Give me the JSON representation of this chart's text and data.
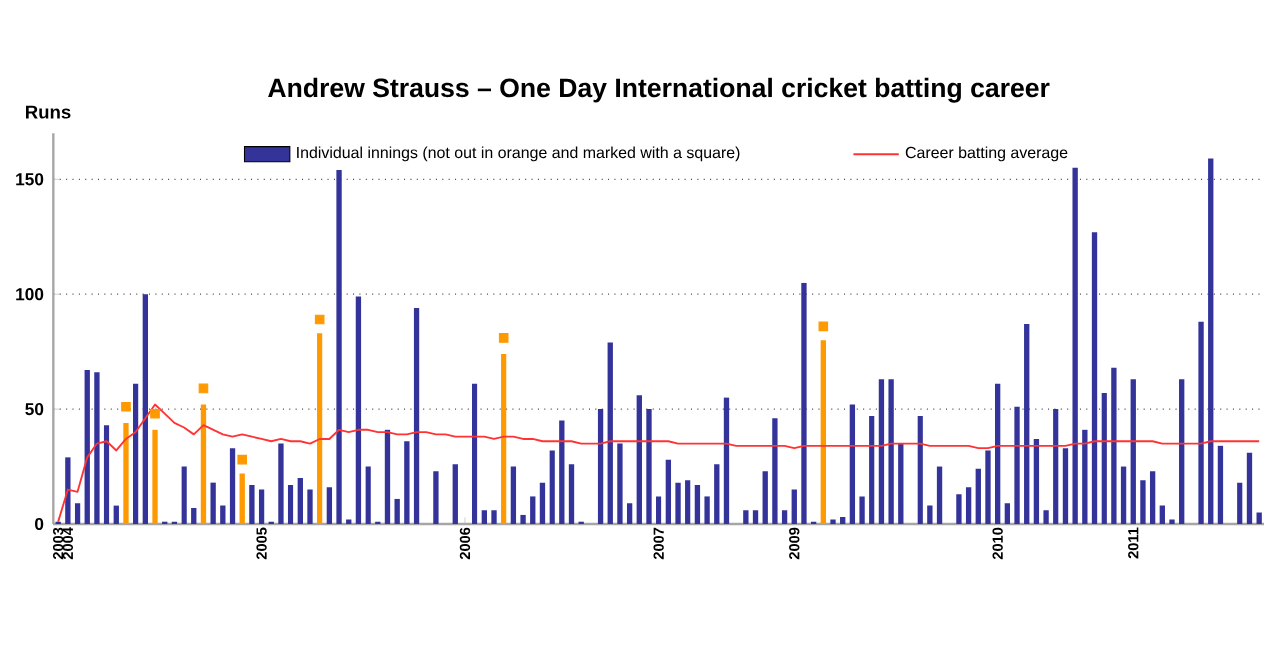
{
  "chart_data": {
    "type": "bar",
    "title": "Andrew Strauss – One Day International cricket batting career",
    "ylabel": "Runs",
    "categories": [
      "2003",
      "2004",
      null,
      null,
      null,
      null,
      null,
      null,
      null,
      null,
      null,
      null,
      null,
      null,
      null,
      null,
      null,
      null,
      null,
      null,
      null,
      "2005",
      null,
      null,
      null,
      null,
      null,
      null,
      null,
      null,
      null,
      null,
      null,
      null,
      null,
      null,
      null,
      null,
      null,
      null,
      null,
      null,
      "2006",
      null,
      null,
      null,
      null,
      null,
      null,
      null,
      null,
      null,
      null,
      null,
      null,
      null,
      null,
      null,
      null,
      null,
      null,
      null,
      "2007",
      null,
      null,
      null,
      null,
      null,
      null,
      null,
      null,
      null,
      null,
      null,
      null,
      null,
      "2009",
      null,
      null,
      null,
      null,
      null,
      null,
      null,
      null,
      null,
      null,
      null,
      null,
      null,
      null,
      null,
      null,
      null,
      null,
      null,
      null,
      "2010",
      null,
      null,
      null,
      null,
      null,
      null,
      null,
      null,
      null,
      null,
      null,
      null,
      null,
      "2011",
      null,
      null,
      null,
      null,
      null,
      null,
      null,
      null,
      null,
      null,
      null,
      null,
      null
    ],
    "ylim": [
      0,
      170
    ],
    "yticks": [
      0,
      50,
      100,
      150
    ],
    "grid": "y",
    "legend": "top",
    "series": [
      {
        "name": "Individual innings (not out in orange and marked with a square)",
        "color": "#333399",
        "values": [
          1,
          29,
          9,
          67,
          66,
          43,
          8,
          44,
          61,
          100,
          41,
          1,
          1,
          25,
          7,
          52,
          18,
          8,
          33,
          22,
          17,
          15,
          1,
          35,
          17,
          20,
          15,
          83,
          16,
          154,
          2,
          99,
          25,
          1,
          41,
          11,
          36,
          94,
          0,
          23,
          0,
          26,
          0,
          61,
          6,
          6,
          74,
          25,
          4,
          12,
          18,
          32,
          45,
          26,
          1,
          0,
          50,
          79,
          35,
          9,
          56,
          50,
          12,
          28,
          18,
          19,
          17,
          12,
          26,
          55,
          0,
          6,
          6,
          23,
          46,
          6,
          15,
          105,
          1,
          80,
          2,
          3,
          52,
          12,
          47,
          63,
          63,
          35,
          0,
          47,
          8,
          25,
          0,
          13,
          16,
          24,
          32,
          61,
          9,
          51,
          87,
          37,
          6,
          50,
          33,
          155,
          41,
          127,
          57,
          68,
          25,
          63,
          19,
          23,
          8,
          2,
          63,
          0,
          88,
          159,
          34,
          0,
          18,
          31,
          5
        ],
        "colors": [
          "#333399",
          "#333399",
          "#333399",
          "#333399",
          "#333399",
          "#333399",
          "#333399",
          "#ff9900",
          "#333399",
          "#333399",
          "#ff9900",
          "#333399",
          "#333399",
          "#333399",
          "#333399",
          "#ff9900",
          "#333399",
          "#333399",
          "#333399",
          "#ff9900",
          "#333399",
          "#333399",
          "#333399",
          "#333399",
          "#333399",
          "#333399",
          "#333399",
          "#ff9900",
          "#333399",
          "#333399",
          "#333399",
          "#333399",
          "#333399",
          "#333399",
          "#333399",
          "#333399",
          "#333399",
          "#333399",
          "#333399",
          "#333399",
          "#333399",
          "#333399",
          "#333399",
          "#333399",
          "#333399",
          "#333399",
          "#ff9900",
          "#333399",
          "#333399",
          "#333399",
          "#333399",
          "#333399",
          "#333399",
          "#333399",
          "#333399",
          "#333399",
          "#333399",
          "#333399",
          "#333399",
          "#333399",
          "#333399",
          "#333399",
          "#333399",
          "#333399",
          "#333399",
          "#333399",
          "#333399",
          "#333399",
          "#333399",
          "#333399",
          "#333399",
          "#333399",
          "#333399",
          "#333399",
          "#333399",
          "#333399",
          "#333399",
          "#333399",
          "#333399",
          "#ff9900",
          "#333399",
          "#333399",
          "#333399",
          "#333399",
          "#333399",
          "#333399",
          "#333399",
          "#333399",
          "#333399",
          "#333399",
          "#333399",
          "#333399",
          "#333399",
          "#333399",
          "#333399",
          "#333399",
          "#333399",
          "#333399",
          "#333399",
          "#333399",
          "#333399",
          "#333399",
          "#333399",
          "#333399",
          "#333399",
          "#333399",
          "#333399",
          "#333399",
          "#333399",
          "#333399",
          "#333399",
          "#333399",
          "#333399",
          "#333399",
          "#333399",
          "#333399",
          "#333399",
          "#333399",
          "#333399",
          "#333399",
          "#333399",
          "#333399",
          "#333399",
          "#333399",
          "#333399"
        ]
      },
      {
        "type": "scatter",
        "color": "#ff9900",
        "marker": "square",
        "values": [
          null,
          null,
          null,
          null,
          null,
          null,
          null,
          51,
          null,
          null,
          48,
          null,
          null,
          null,
          null,
          59,
          null,
          null,
          null,
          28,
          null,
          null,
          null,
          null,
          null,
          null,
          null,
          89,
          null,
          null,
          null,
          null,
          null,
          null,
          null,
          null,
          null,
          null,
          null,
          null,
          null,
          null,
          null,
          null,
          null,
          null,
          81,
          null,
          null,
          null,
          null,
          null,
          null,
          null,
          null,
          null,
          null,
          null,
          null,
          null,
          null,
          null,
          null,
          null,
          null,
          null,
          null,
          null,
          null,
          null,
          null,
          null,
          null,
          null,
          null,
          null,
          null,
          null,
          null,
          86,
          null,
          null,
          null,
          null,
          null,
          null,
          null,
          null,
          null,
          null,
          null,
          null,
          null,
          null,
          null,
          null,
          null,
          null,
          null,
          null,
          null,
          null,
          null,
          null,
          null,
          null,
          null,
          null,
          null,
          null,
          null,
          null,
          null,
          null,
          null,
          null,
          null,
          null,
          null,
          null,
          null,
          null,
          null,
          null,
          null
        ]
      },
      {
        "name": "Career batting average",
        "type": "line",
        "color": "#ff3333",
        "marker": "none",
        "line_style": "solid",
        "values": [
          1,
          15,
          14,
          29,
          35,
          36,
          32,
          37,
          40,
          46,
          52,
          48,
          44,
          42,
          39,
          43,
          41,
          39,
          38,
          39,
          38,
          37,
          36,
          37,
          36,
          36,
          35,
          37,
          37,
          41,
          40,
          41,
          41,
          40,
          40,
          39,
          39,
          40,
          40,
          39,
          39,
          38,
          38,
          38,
          38,
          37,
          38,
          38,
          37,
          37,
          36,
          36,
          36,
          36,
          35,
          35,
          35,
          36,
          36,
          36,
          36,
          36,
          36,
          36,
          35,
          35,
          35,
          35,
          35,
          35,
          34,
          34,
          34,
          34,
          34,
          34,
          33,
          34,
          34,
          34,
          34,
          34,
          34,
          34,
          34,
          34,
          35,
          35,
          35,
          35,
          34,
          34,
          34,
          34,
          34,
          33,
          33,
          34,
          34,
          34,
          34,
          34,
          34,
          34,
          34,
          35,
          35,
          36,
          36,
          36,
          36,
          36,
          36,
          36,
          35,
          35,
          35,
          35,
          35,
          36,
          36,
          36,
          36,
          36,
          36
        ]
      }
    ]
  }
}
